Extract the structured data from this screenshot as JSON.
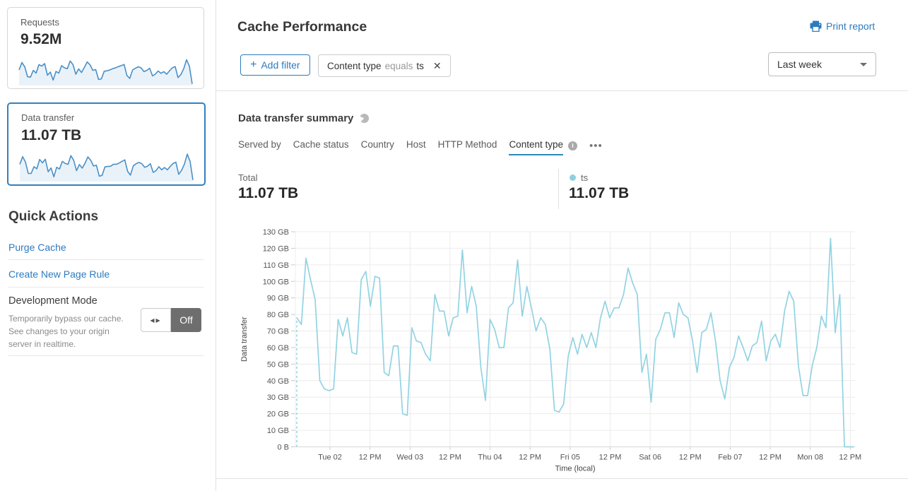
{
  "colors": {
    "link_blue": "#2c7bbf",
    "selected_card_border": "#3380bd",
    "sparkline_stroke": "#4a90c7",
    "sparkline_fill": "#eaf2f9",
    "chart_line": "#92d3e2",
    "legend_dot": "#8fd0e0",
    "tab_underline": "#3087b5",
    "toggle_off_bg": "#6e6e6e"
  },
  "sidebar": {
    "cards": [
      {
        "label": "Requests",
        "value": "9.52M"
      },
      {
        "label": "Data transfer",
        "value": "11.07 TB"
      }
    ],
    "quick_actions": {
      "title": "Quick Actions",
      "links": [
        {
          "label": "Purge Cache"
        },
        {
          "label": "Create New Page Rule"
        }
      ]
    },
    "dev_mode": {
      "title": "Development Mode",
      "description": "Temporarily bypass our cache. See changes to your origin server in realtime.",
      "toggle_arrows": "◀▶",
      "toggle_state": "Off"
    }
  },
  "header": {
    "title": "Cache Performance",
    "print_label": "Print report",
    "add_filter": {
      "plus": "+",
      "label": "Add filter"
    },
    "filter_chip": {
      "field": "Content type",
      "operator": "equals",
      "value": "ts",
      "close": "✕"
    },
    "date_range": {
      "value": "Last week"
    }
  },
  "summary": {
    "title": "Data transfer summary",
    "tabs": [
      "Served by",
      "Cache status",
      "Country",
      "Host",
      "HTTP Method",
      "Content type"
    ],
    "info_glyph": "i",
    "more": "•••",
    "total_label": "Total",
    "total_value": "11.07 TB",
    "legend": {
      "name": "ts",
      "value": "11.07 TB"
    }
  },
  "chart_data": {
    "type": "line",
    "title": "Data transfer summary",
    "ylabel": "Data transfer",
    "xlabel": "Time (local)",
    "unit": "GB",
    "ylim": [
      0,
      130
    ],
    "y_tick_step": 10,
    "y_tick_labels": [
      "0 B",
      "10 GB",
      "20 GB",
      "30 GB",
      "40 GB",
      "50 GB",
      "60 GB",
      "70 GB",
      "80 GB",
      "90 GB",
      "100 GB",
      "110 GB",
      "120 GB",
      "130 GB"
    ],
    "x_tick_labels": [
      "Tue 02",
      "12 PM",
      "Wed 03",
      "12 PM",
      "Thu 04",
      "12 PM",
      "Fri 05",
      "12 PM",
      "Sat 06",
      "12 PM",
      "Feb 07",
      "12 PM",
      "Mon 08",
      "12 PM"
    ],
    "grid": true,
    "leading_dashed": true,
    "series": [
      {
        "name": "ts",
        "color": "#92d3e2",
        "values": [
          78,
          74,
          114,
          101,
          89,
          40,
          35,
          34,
          35,
          77,
          67,
          78,
          57,
          56,
          101,
          106,
          85,
          103,
          102,
          45,
          43,
          61,
          61,
          20,
          19,
          72,
          64,
          63,
          56,
          52,
          92,
          82,
          82,
          67,
          78,
          79,
          119,
          81,
          97,
          85,
          48,
          28,
          77,
          71,
          60,
          60,
          84,
          87,
          113,
          79,
          97,
          84,
          70,
          78,
          74,
          59,
          22,
          21,
          26,
          55,
          66,
          56,
          68,
          60,
          69,
          60,
          78,
          88,
          78,
          84,
          84,
          92,
          108,
          99,
          92,
          45,
          56,
          27,
          65,
          71,
          81,
          81,
          66,
          87,
          80,
          78,
          64,
          45,
          69,
          71,
          81,
          64,
          40,
          29,
          48,
          54,
          67,
          60,
          52,
          61,
          63,
          76,
          52,
          64,
          68,
          60,
          82,
          94,
          88,
          49,
          31,
          31,
          49,
          60,
          79,
          72,
          126,
          69,
          92,
          0,
          0,
          0
        ]
      }
    ]
  },
  "sparklines": {
    "requests": [
      70,
      105,
      85,
      38,
      36,
      68,
      55,
      95,
      88,
      100,
      45,
      60,
      22,
      63,
      55,
      90,
      80,
      76,
      112,
      95,
      50,
      75,
      58,
      82,
      108,
      94,
      68,
      72,
      25,
      28,
      64,
      66,
      70,
      76,
      80,
      86,
      90,
      96,
      44,
      30,
      70,
      78,
      85,
      80,
      62,
      68,
      78,
      42,
      50,
      65,
      54,
      62,
      50,
      66,
      80,
      86,
      34,
      48,
      76,
      118,
      88,
      4
    ],
    "transfer": [
      78,
      114,
      89,
      35,
      35,
      67,
      57,
      101,
      85,
      102,
      43,
      61,
      19,
      64,
      56,
      92,
      82,
      78,
      119,
      97,
      48,
      77,
      60,
      84,
      113,
      97,
      70,
      74,
      22,
      26,
      66,
      68,
      69,
      78,
      78,
      84,
      92,
      99,
      45,
      27,
      71,
      81,
      87,
      81,
      64,
      69,
      81,
      40,
      48,
      67,
      52,
      63,
      52,
      68,
      82,
      88,
      31,
      49,
      79,
      126,
      92,
      4
    ]
  }
}
